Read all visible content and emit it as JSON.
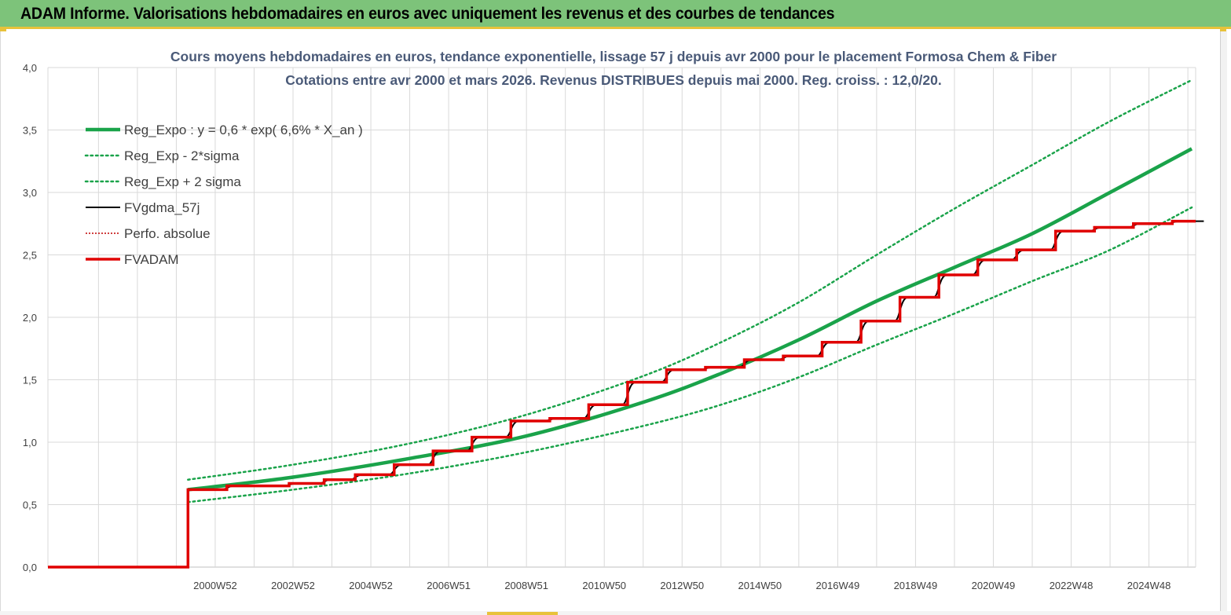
{
  "header": {
    "title": "ADAM Informe. Valorisations hebdomadaires en euros avec uniquement les revenus et des courbes de tendances"
  },
  "colors": {
    "banner": "#7dc37a",
    "accent": "#e8c23a",
    "trend": "#1aa34a",
    "band": "#1aa34a",
    "gdma": "#000000",
    "perfo": "#c00000",
    "fvadam": "#e00000",
    "title_text": "#4a5a78"
  },
  "chart_data": {
    "type": "line",
    "title": "Cours moyens hebdomadaires en euros, tendance exponentielle, lissage 57 j depuis avr 2000 pour le placement Formosa Chem & Fiber",
    "subtitle": "Cotations entre avr 2000 et mars 2026. Revenus DISTRIBUES depuis mai 2000. Reg. croiss. : 12,0/20.",
    "xlabel": "",
    "ylabel": "",
    "ylim": [
      0,
      4.0
    ],
    "xlim": [
      1996.7,
      2026.2
    ],
    "y_ticks": [
      "0,0",
      "0,5",
      "1,0",
      "1,5",
      "2,0",
      "2,5",
      "3,0",
      "3,5",
      "4,0"
    ],
    "x_ticks": [
      {
        "label": "2000W52",
        "x": 2001.0
      },
      {
        "label": "2002W52",
        "x": 2003.0
      },
      {
        "label": "2004W52",
        "x": 2005.0
      },
      {
        "label": "2006W51",
        "x": 2007.0
      },
      {
        "label": "2008W51",
        "x": 2009.0
      },
      {
        "label": "2010W50",
        "x": 2011.0
      },
      {
        "label": "2012W50",
        "x": 2013.0
      },
      {
        "label": "2014W50",
        "x": 2015.0
      },
      {
        "label": "2016W49",
        "x": 2017.0
      },
      {
        "label": "2018W49",
        "x": 2019.0
      },
      {
        "label": "2020W49",
        "x": 2021.0
      },
      {
        "label": "2022W48",
        "x": 2023.0
      },
      {
        "label": "2024W48",
        "x": 2025.0
      }
    ],
    "grid": true,
    "legend_position": "top-left",
    "legend": [
      {
        "label": "Reg_Expo : y = 0,6 * exp( 6,6% *  X_an )",
        "key": "trend",
        "style": "solid-thick"
      },
      {
        "label": "Reg_Exp - 2*sigma",
        "key": "band",
        "style": "dotted"
      },
      {
        "label": "Reg_Exp + 2 sigma",
        "key": "band",
        "style": "dotted"
      },
      {
        "label": "FVgdma_57j",
        "key": "gdma",
        "style": "solid"
      },
      {
        "label": "Perfo. absolue",
        "key": "perfo",
        "style": "dotted-thin"
      },
      {
        "label": "FVADAM",
        "key": "fvadam",
        "style": "solid-thick"
      }
    ],
    "series": [
      {
        "name": "Reg_Expo : y = 0,6 * exp( 6,6% *  X_an )",
        "points": [
          [
            2000.3,
            0.62
          ],
          [
            2003,
            0.72
          ],
          [
            2006,
            0.87
          ],
          [
            2009,
            1.05
          ],
          [
            2012,
            1.32
          ],
          [
            2014,
            1.55
          ],
          [
            2016,
            1.82
          ],
          [
            2018,
            2.13
          ],
          [
            2020,
            2.4
          ],
          [
            2022,
            2.67
          ],
          [
            2024,
            3.0
          ],
          [
            2026.1,
            3.35
          ]
        ]
      },
      {
        "name": "Reg_Exp - 2*sigma",
        "points": [
          [
            2000.3,
            0.52
          ],
          [
            2003,
            0.62
          ],
          [
            2006,
            0.75
          ],
          [
            2009,
            0.92
          ],
          [
            2012,
            1.13
          ],
          [
            2014,
            1.3
          ],
          [
            2016,
            1.52
          ],
          [
            2018,
            1.78
          ],
          [
            2020,
            2.03
          ],
          [
            2022,
            2.29
          ],
          [
            2024,
            2.54
          ],
          [
            2026.1,
            2.88
          ]
        ]
      },
      {
        "name": "Reg_Exp + 2 sigma",
        "points": [
          [
            2000.3,
            0.7
          ],
          [
            2003,
            0.82
          ],
          [
            2006,
            0.99
          ],
          [
            2009,
            1.22
          ],
          [
            2012,
            1.53
          ],
          [
            2014,
            1.8
          ],
          [
            2016,
            2.12
          ],
          [
            2018,
            2.5
          ],
          [
            2020,
            2.87
          ],
          [
            2022,
            3.22
          ],
          [
            2024,
            3.57
          ],
          [
            2026.1,
            3.9
          ]
        ]
      },
      {
        "name": "FVADAM",
        "steps": [
          {
            "x": 1996.7,
            "y": 0.0
          },
          {
            "x": 2000.3,
            "y": 0.62
          },
          {
            "x": 2001.3,
            "y": 0.65
          },
          {
            "x": 2002.9,
            "y": 0.67
          },
          {
            "x": 2003.8,
            "y": 0.7
          },
          {
            "x": 2004.6,
            "y": 0.74
          },
          {
            "x": 2005.6,
            "y": 0.82
          },
          {
            "x": 2006.6,
            "y": 0.93
          },
          {
            "x": 2007.6,
            "y": 1.04
          },
          {
            "x": 2008.6,
            "y": 1.17
          },
          {
            "x": 2009.6,
            "y": 1.19
          },
          {
            "x": 2010.6,
            "y": 1.3
          },
          {
            "x": 2011.6,
            "y": 1.48
          },
          {
            "x": 2012.6,
            "y": 1.58
          },
          {
            "x": 2013.6,
            "y": 1.6
          },
          {
            "x": 2014.6,
            "y": 1.66
          },
          {
            "x": 2015.6,
            "y": 1.69
          },
          {
            "x": 2016.6,
            "y": 1.8
          },
          {
            "x": 2017.6,
            "y": 1.97
          },
          {
            "x": 2018.6,
            "y": 2.16
          },
          {
            "x": 2019.6,
            "y": 2.34
          },
          {
            "x": 2020.6,
            "y": 2.46
          },
          {
            "x": 2021.6,
            "y": 2.54
          },
          {
            "x": 2022.6,
            "y": 2.69
          },
          {
            "x": 2023.6,
            "y": 2.72
          },
          {
            "x": 2024.6,
            "y": 2.75
          },
          {
            "x": 2025.6,
            "y": 2.77
          },
          {
            "x": 2026.2,
            "y": 2.77
          }
        ]
      }
    ]
  }
}
